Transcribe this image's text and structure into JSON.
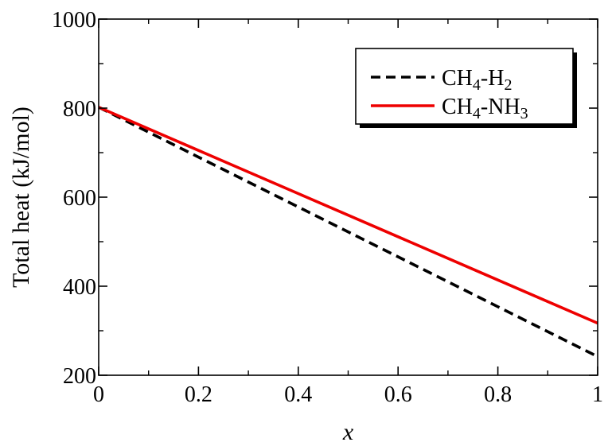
{
  "chart_data": {
    "type": "line",
    "title": "",
    "xlabel": "x",
    "ylabel": "Total heat (kJ/mol)",
    "xlim": [
      0,
      1
    ],
    "ylim": [
      200,
      1000
    ],
    "x_ticks": [
      0,
      0.2,
      0.4,
      0.6,
      0.8,
      1
    ],
    "x_tick_labels": [
      "0",
      "0.2",
      "0.4",
      "0.6",
      "0.8",
      "1"
    ],
    "y_ticks": [
      200,
      400,
      600,
      800,
      1000
    ],
    "y_tick_labels": [
      "200",
      "400",
      "600",
      "800",
      "1000"
    ],
    "grid": false,
    "legend_position": "top-right",
    "series": [
      {
        "name_main": "CH",
        "name_sub1": "4",
        "name_mid": "-H",
        "name_sub2": "2",
        "name_tail": "",
        "color": "#000000",
        "style": "dashed",
        "x": [
          0,
          0.2,
          0.4,
          0.6,
          0.8,
          1.0
        ],
        "y": [
          802,
          690,
          578,
          466,
          354,
          242
        ]
      },
      {
        "name_main": "CH",
        "name_sub1": "4",
        "name_mid": "-NH",
        "name_sub2": "3",
        "name_tail": "",
        "color": "#ee0000",
        "style": "solid",
        "x": [
          0,
          0.2,
          0.4,
          0.6,
          0.8,
          1.0
        ],
        "y": [
          802,
          705,
          608,
          511,
          414,
          317
        ]
      }
    ]
  }
}
